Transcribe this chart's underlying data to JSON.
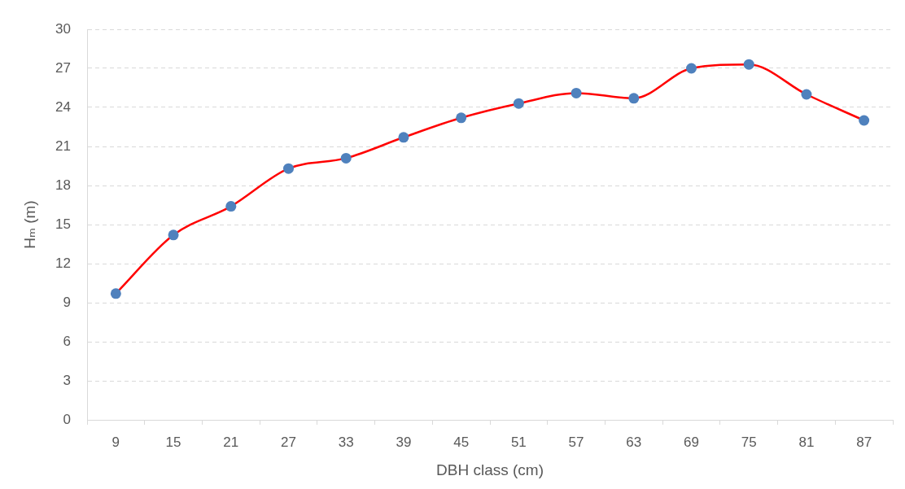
{
  "chart_data": {
    "type": "line",
    "xlabel": "DBH class (cm)",
    "ylabel": "Hₘ (m)",
    "categories": [
      "9",
      "15",
      "21",
      "27",
      "33",
      "39",
      "45",
      "51",
      "57",
      "63",
      "69",
      "75",
      "81",
      "87"
    ],
    "series": [
      {
        "color": "#ff0000",
        "colors": [
          "#4f81bd",
          "#4f81bd",
          "#4f81bd",
          "#4f81bd",
          "#4f81bd",
          "#4f81bd",
          "#4f81bd",
          "#4f81bd",
          "#4f81bd",
          "#4f81bd",
          "#4f81bd",
          "#4f81bd",
          "#4f81bd",
          "#4f81bd"
        ],
        "values": [
          9.7,
          14.2,
          16.4,
          19.3,
          20.1,
          21.7,
          23.2,
          24.3,
          25.1,
          24.7,
          27.0,
          27.3,
          25.0,
          23.0
        ]
      }
    ],
    "ylim": [
      0,
      30
    ],
    "yticks": [
      0,
      3,
      6,
      9,
      12,
      15,
      18,
      21,
      24,
      27,
      30
    ],
    "grid": "y",
    "marker": "circle",
    "line_style": "solid"
  }
}
